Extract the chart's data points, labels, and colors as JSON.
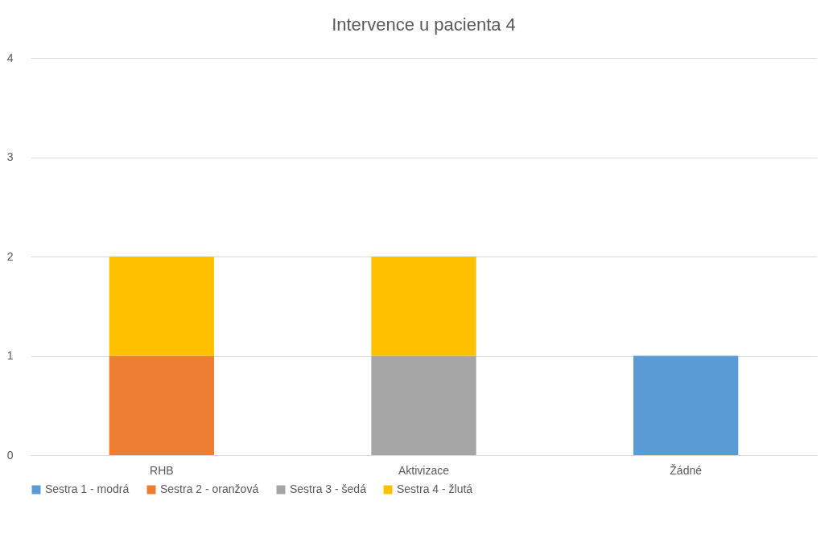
{
  "chart_data": {
    "type": "bar",
    "title": "Intervence u pacienta 4",
    "categories": [
      "RHB",
      "Aktivizace",
      "Žádné"
    ],
    "stacked": true,
    "series": [
      {
        "name": "Sestra 1 - modrá",
        "color": "#5b9bd5",
        "values": [
          0,
          0,
          1
        ]
      },
      {
        "name": "Sestra 2 - oranžová",
        "color": "#ed7d31",
        "values": [
          1,
          0,
          0
        ]
      },
      {
        "name": "Sestra 3 - šedá",
        "color": "#a5a5a5",
        "values": [
          0,
          1,
          0
        ]
      },
      {
        "name": "Sestra 4 - žlutá",
        "color": "#ffc000",
        "values": [
          1,
          1,
          0
        ]
      }
    ],
    "ylim": [
      0,
      4
    ],
    "yticks": [
      0,
      1,
      2,
      3,
      4
    ],
    "grid": "y",
    "legend": "bottom"
  }
}
